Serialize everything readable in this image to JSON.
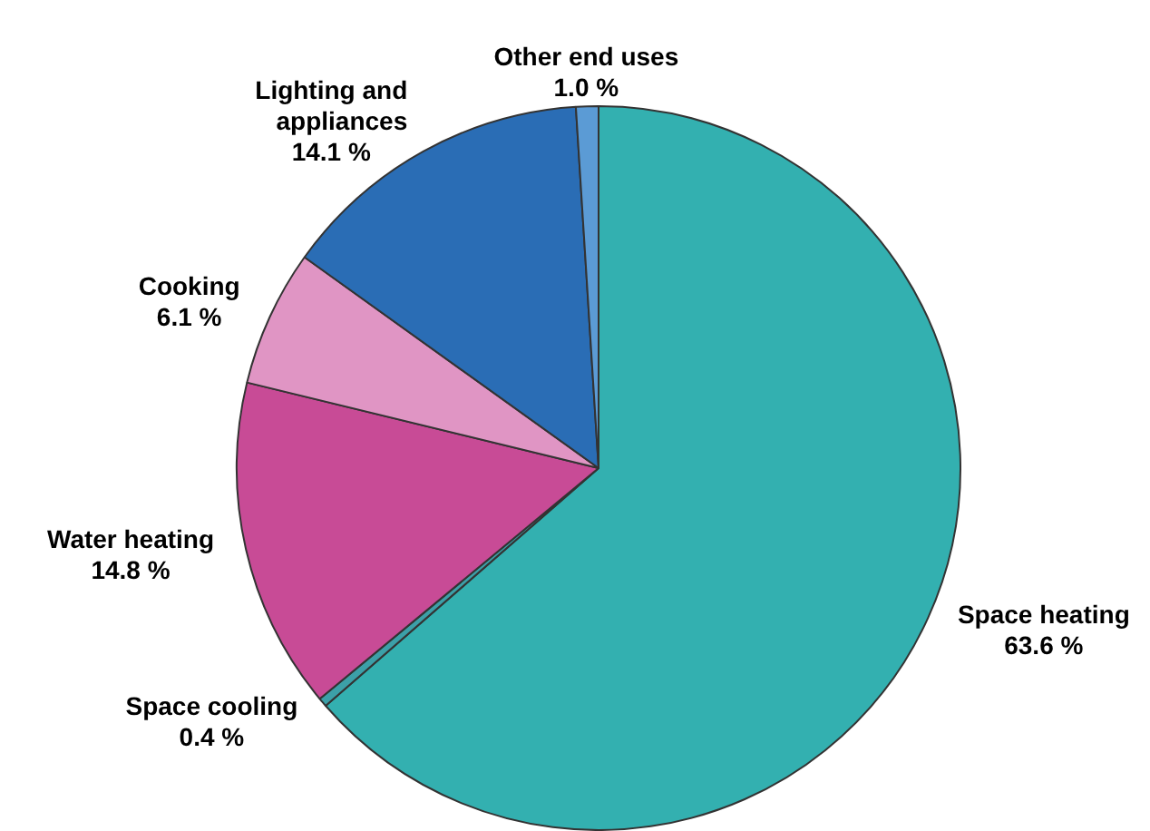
{
  "chart_data": {
    "type": "pie",
    "categories": [
      "Space heating",
      "Space cooling",
      "Water heating",
      "Cooking",
      "Lighting and appliances",
      "Other end uses"
    ],
    "values": [
      63.6,
      0.4,
      14.8,
      6.1,
      14.1,
      1.0
    ],
    "colors": [
      "#33b0b0",
      "#3ca0a8",
      "#c84b96",
      "#e095c4",
      "#2a6db5",
      "#5b9bd5"
    ],
    "value_labels": [
      "63.6 %",
      "0.4 %",
      "14.8 %",
      "6.1 %",
      "14.1 %",
      "1.0 %"
    ],
    "legend": false
  }
}
